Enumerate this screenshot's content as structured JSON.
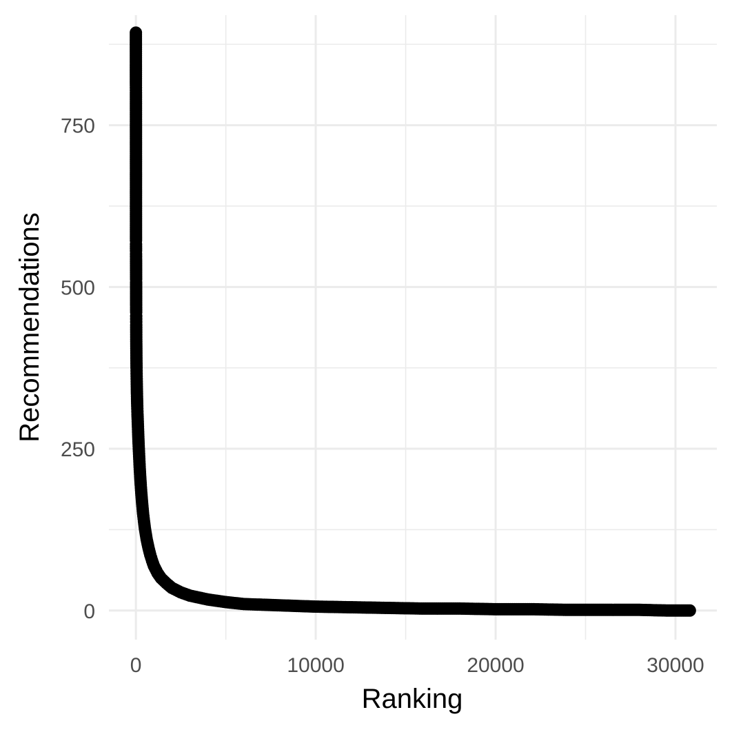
{
  "chart_data": {
    "type": "scatter",
    "title": "",
    "xlabel": "Ranking",
    "ylabel": "Recommendations",
    "xlim": [
      -1500,
      32300
    ],
    "ylim": [
      -45,
      920
    ],
    "x_ticks": [
      0,
      10000,
      20000,
      30000
    ],
    "x_tick_labels": [
      "0",
      "10000",
      "20000",
      "30000"
    ],
    "y_ticks": [
      0,
      250,
      500,
      750
    ],
    "y_tick_labels": [
      "0",
      "250",
      "500",
      "750"
    ],
    "grid": true,
    "legend": "none",
    "point_color": "#000000",
    "series": [
      {
        "points": [
          [
            0,
            893
          ],
          [
            1,
            812
          ],
          [
            2,
            808
          ],
          [
            3,
            800
          ],
          [
            4,
            749
          ],
          [
            5,
            638
          ],
          [
            6,
            572
          ],
          [
            7,
            566
          ],
          [
            8,
            556
          ],
          [
            9,
            551
          ],
          [
            10,
            543
          ],
          [
            11,
            536
          ],
          [
            12,
            519
          ],
          [
            13,
            512
          ],
          [
            14,
            507
          ],
          [
            15,
            472
          ],
          [
            16,
            468
          ],
          [
            17,
            461
          ],
          [
            18,
            455
          ],
          [
            19,
            446
          ],
          [
            20,
            441
          ],
          [
            22,
            419
          ],
          [
            24,
            412
          ],
          [
            26,
            405
          ],
          [
            28,
            398
          ],
          [
            30,
            390
          ],
          [
            33,
            382
          ],
          [
            36,
            375
          ],
          [
            40,
            366
          ],
          [
            45,
            358
          ],
          [
            50,
            350
          ],
          [
            55,
            342
          ],
          [
            60,
            335
          ],
          [
            66,
            327
          ],
          [
            72,
            320
          ],
          [
            80,
            312
          ],
          [
            90,
            303
          ],
          [
            100,
            296
          ],
          [
            110,
            288
          ],
          [
            120,
            280
          ],
          [
            130,
            272
          ],
          [
            140,
            265
          ],
          [
            150,
            258
          ],
          [
            170,
            246
          ],
          [
            190,
            234
          ],
          [
            210,
            222
          ],
          [
            240,
            207
          ],
          [
            270,
            194
          ],
          [
            300,
            182
          ],
          [
            350,
            165
          ],
          [
            400,
            150
          ],
          [
            450,
            138
          ],
          [
            500,
            127
          ],
          [
            600,
            110
          ],
          [
            700,
            97
          ],
          [
            800,
            86
          ],
          [
            900,
            77
          ],
          [
            1000,
            69
          ],
          [
            1200,
            58
          ],
          [
            1400,
            50
          ],
          [
            1700,
            42
          ],
          [
            2000,
            35
          ],
          [
            2500,
            28
          ],
          [
            3000,
            23
          ],
          [
            4000,
            17
          ],
          [
            5000,
            13
          ],
          [
            6000,
            10
          ],
          [
            7000,
            9
          ],
          [
            8000,
            8
          ],
          [
            10000,
            6
          ],
          [
            12000,
            5
          ],
          [
            14000,
            4
          ],
          [
            16000,
            3
          ],
          [
            18000,
            3
          ],
          [
            20000,
            2
          ],
          [
            22000,
            2
          ],
          [
            24000,
            1
          ],
          [
            26000,
            1
          ],
          [
            28000,
            1
          ],
          [
            29500,
            0
          ],
          [
            30800,
            0
          ]
        ]
      }
    ]
  }
}
